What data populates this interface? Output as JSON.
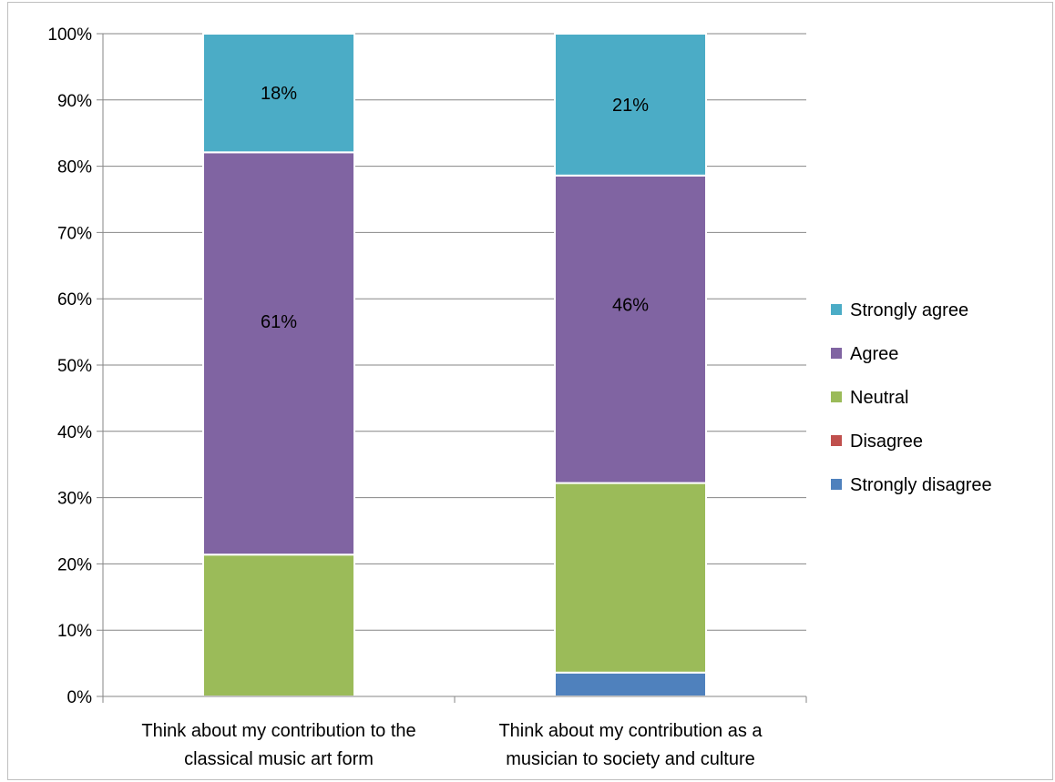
{
  "chart_data": {
    "type": "bar",
    "stacked": true,
    "categories": [
      [
        "Think about my contribution to the",
        "classical music art form"
      ],
      [
        "Think about my contribution as a",
        "musician to society and culture"
      ]
    ],
    "series": [
      {
        "name": "Strongly disagree",
        "color": "#4f81bd",
        "values": [
          0,
          3.6
        ],
        "labels": [
          "",
          ""
        ]
      },
      {
        "name": "Disagree",
        "color": "#c0504d",
        "values": [
          0,
          0
        ],
        "labels": [
          "",
          ""
        ]
      },
      {
        "name": "Neutral",
        "color": "#9bbb59",
        "values": [
          21.4,
          28.6
        ],
        "labels": [
          "",
          ""
        ]
      },
      {
        "name": "Agree",
        "color": "#8064a2",
        "values": [
          60.7,
          46.4
        ],
        "labels": [
          "61%",
          "46%"
        ]
      },
      {
        "name": "Strongly agree",
        "color": "#4bacc6",
        "values": [
          17.9,
          21.4
        ],
        "labels": [
          "18%",
          "21%"
        ]
      }
    ],
    "legend_order": [
      "Strongly agree",
      "Agree",
      "Neutral",
      "Disagree",
      "Strongly disagree"
    ],
    "y_ticks": [
      "0%",
      "10%",
      "20%",
      "30%",
      "40%",
      "50%",
      "60%",
      "70%",
      "80%",
      "90%",
      "100%"
    ],
    "ylim": [
      0,
      100
    ],
    "grid": true,
    "legend_position": "right"
  }
}
